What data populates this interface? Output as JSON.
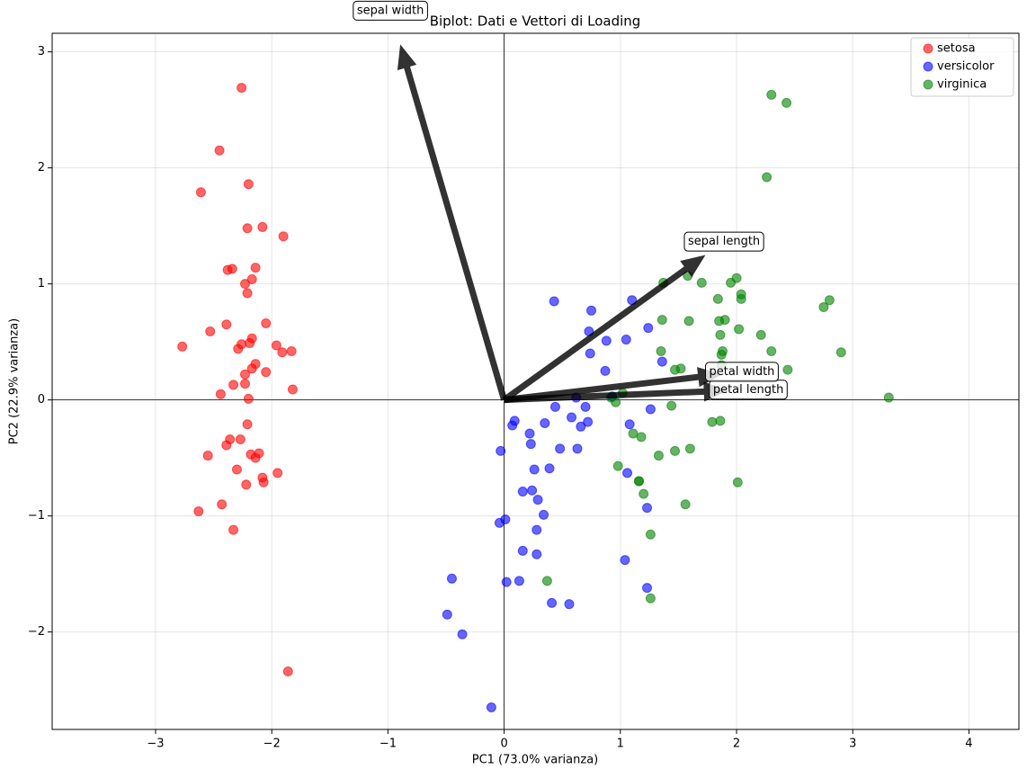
{
  "chart_data": {
    "type": "scatter",
    "title": "Biplot: Dati e Vettori di Loading",
    "x_label": "PC1 (73.0% varianza)",
    "y_label": "PC2 (22.9% varianza)",
    "xlim": [
      -3.89,
      4.43
    ],
    "ylim": [
      -2.84,
      3.16
    ],
    "xticks": [
      {
        "value": -3,
        "label": "−3"
      },
      {
        "value": -2,
        "label": "−2"
      },
      {
        "value": -1,
        "label": "−1"
      },
      0,
      1,
      2,
      3,
      4
    ],
    "yticks": [
      {
        "value": -2,
        "label": "−2"
      },
      {
        "value": -1,
        "label": "−1"
      },
      0,
      1,
      2,
      3
    ],
    "grid": true,
    "legend": "upper right",
    "series": [
      {
        "name": "setosa",
        "color": "#ff0000",
        "x": [
          -2.26,
          -2.08,
          -2.36,
          -2.3,
          -2.39,
          -2.08,
          -2.44,
          -2.23,
          -2.33,
          -2.18,
          -2.17,
          -2.33,
          -2.22,
          -2.63,
          -2.2,
          -2.26,
          -2.21,
          -2.19,
          -1.9,
          -2.34,
          -1.91,
          -2.21,
          -2.77,
          -1.82,
          -2.23,
          -1.95,
          -2.05,
          -2.17,
          -2.14,
          -2.27,
          -2.14,
          -1.83,
          -2.61,
          -2.45,
          -2.11,
          -2.21,
          -2.05,
          -2.53,
          -2.43,
          -2.17,
          -2.29,
          -1.86,
          -2.55,
          -1.96,
          -2.14,
          -2.07,
          -2.38,
          -2.39,
          -2.23,
          -2.2
        ],
        "y": [
          0.48,
          -0.67,
          -0.34,
          -0.6,
          0.65,
          1.49,
          0.05,
          0.22,
          -1.12,
          -0.47,
          1.04,
          0.13,
          -0.73,
          -0.96,
          1.86,
          2.69,
          1.48,
          0.49,
          1.41,
          1.13,
          0.41,
          0.92,
          0.46,
          0.09,
          0.14,
          -0.63,
          0.24,
          0.53,
          0.31,
          -0.34,
          -0.5,
          0.42,
          1.79,
          2.15,
          -0.46,
          -0.21,
          0.66,
          0.59,
          -0.9,
          0.27,
          0.44,
          -2.34,
          -0.48,
          0.47,
          1.14,
          -0.71,
          1.12,
          -0.39,
          1.0,
          0.01
        ]
      },
      {
        "name": "versicolor",
        "color": "#0000ff",
        "x": [
          1.1,
          0.73,
          1.24,
          0.41,
          1.08,
          0.39,
          0.75,
          -0.49,
          0.93,
          0.01,
          -0.11,
          0.44,
          0.56,
          0.72,
          -0.03,
          0.88,
          0.35,
          0.16,
          1.23,
          0.16,
          0.74,
          0.48,
          1.23,
          0.63,
          0.7,
          0.87,
          1.26,
          1.36,
          0.66,
          -0.04,
          0.13,
          0.02,
          0.24,
          1.06,
          0.22,
          0.43,
          1.05,
          1.04,
          0.07,
          0.28,
          0.28,
          0.62,
          0.34,
          -0.36,
          0.29,
          0.09,
          0.23,
          0.58,
          -0.45,
          0.26
        ],
        "y": [
          0.86,
          0.59,
          0.62,
          -1.75,
          -0.21,
          -0.59,
          0.77,
          -1.85,
          0.03,
          -1.03,
          -2.65,
          -0.06,
          -1.76,
          -0.19,
          -0.44,
          0.51,
          -0.2,
          -0.79,
          -1.62,
          -1.3,
          0.4,
          -0.42,
          -0.93,
          -0.42,
          -0.06,
          0.25,
          -0.08,
          0.33,
          -0.23,
          -1.06,
          -1.56,
          -1.57,
          -0.78,
          -0.63,
          -0.29,
          0.85,
          0.52,
          -1.38,
          -0.22,
          -1.33,
          -1.12,
          0.02,
          -0.99,
          -2.02,
          -0.86,
          -0.18,
          -0.38,
          -0.15,
          -1.54,
          -0.6
        ]
      },
      {
        "name": "virginica",
        "color": "#008000",
        "x": [
          1.84,
          1.16,
          2.21,
          1.44,
          1.87,
          2.75,
          0.37,
          2.3,
          2.01,
          2.26,
          1.36,
          1.6,
          1.88,
          1.26,
          1.47,
          1.59,
          1.47,
          2.43,
          3.31,
          1.26,
          2.04,
          0.98,
          2.9,
          1.33,
          1.7,
          1.95,
          1.18,
          1.02,
          1.79,
          1.86,
          2.44,
          2.3,
          1.86,
          1.11,
          1.2,
          2.8,
          1.58,
          1.35,
          0.92,
          1.85,
          2.02,
          1.9,
          1.16,
          2.04,
          2.0,
          1.87,
          1.56,
          1.52,
          1.37,
          0.96
        ],
        "y": [
          0.87,
          -0.7,
          0.56,
          -0.05,
          0.3,
          0.8,
          -1.56,
          0.42,
          -0.71,
          1.92,
          0.69,
          -0.42,
          0.42,
          -1.16,
          -0.44,
          0.68,
          0.26,
          2.56,
          0.02,
          -1.71,
          0.91,
          -0.57,
          0.41,
          -0.48,
          1.01,
          1.01,
          -0.32,
          0.06,
          -0.19,
          0.56,
          0.26,
          2.63,
          -0.18,
          -0.29,
          -0.81,
          0.86,
          1.07,
          0.42,
          0.02,
          0.68,
          0.61,
          0.69,
          -0.7,
          0.87,
          1.05,
          0.39,
          -0.9,
          0.27,
          1.01,
          -0.02
        ]
      }
    ],
    "arrows": [
      {
        "label": "sepal length",
        "x": 1.72,
        "y": 1.24
      },
      {
        "label": "sepal width",
        "x": -0.89,
        "y": 3.05
      },
      {
        "label": "petal length",
        "x": 1.91,
        "y": 0.08
      },
      {
        "label": "petal width",
        "x": 1.86,
        "y": 0.22
      }
    ]
  }
}
